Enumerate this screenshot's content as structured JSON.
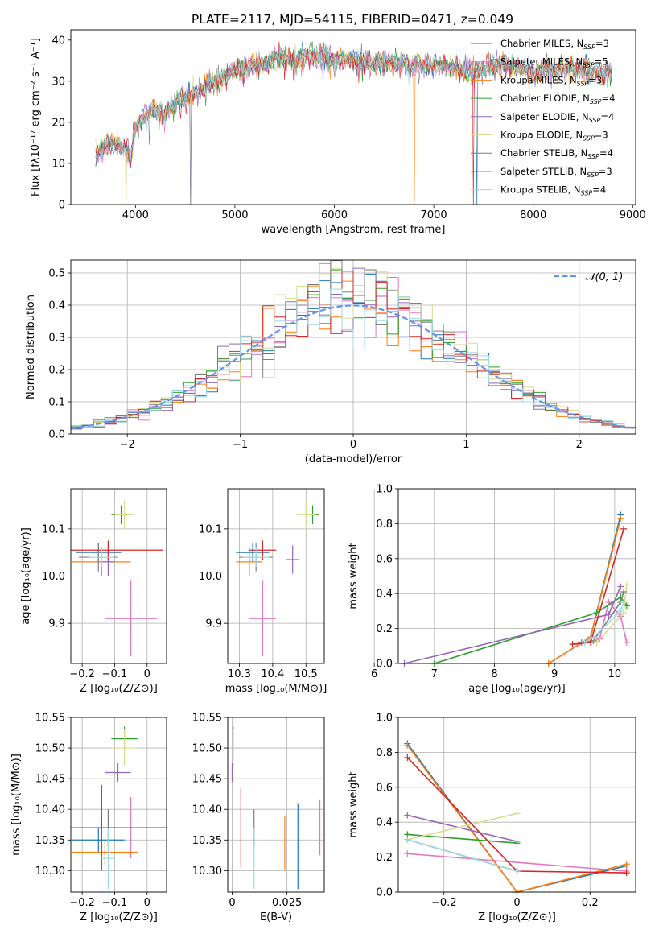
{
  "figure": {
    "title": "PLATE=2117, MJD=54115, FIBERID=0471, z=0.049"
  },
  "legend_labels": [
    {
      "pre": "Chabrier MILES, N",
      "sub": "SSP",
      "post": "=3",
      "color": "#1f77b4"
    },
    {
      "pre": "Salpeter MILES, N",
      "sub": "SSP",
      "post": "=5",
      "color": "#e377c2"
    },
    {
      "pre": "Kroupa MILES, N",
      "sub": "SSP",
      "post": "=3",
      "color": "#ff7f0e"
    },
    {
      "pre": "Chabrier ELODIE, N",
      "sub": "SSP",
      "post": "=4",
      "color": "#2ca02c"
    },
    {
      "pre": "Salpeter ELODIE, N",
      "sub": "SSP",
      "post": "=4",
      "color": "#9467bd"
    },
    {
      "pre": "Kroupa ELODIE, N",
      "sub": "SSP",
      "post": "=3",
      "color": "#dbdb8d"
    },
    {
      "pre": "Chabrier STELIB, N",
      "sub": "SSP",
      "post": "=4",
      "color": "#7f7f7f"
    },
    {
      "pre": "Salpeter STELIB, N",
      "sub": "SSP",
      "post": "=3",
      "color": "#d62728"
    },
    {
      "pre": "Kroupa STELIB, N",
      "sub": "SSP",
      "post": "=4",
      "color": "#9edae5"
    }
  ],
  "chart_data": [
    {
      "type": "line",
      "title": "PLATE=2117, MJD=54115, FIBERID=0471, z=0.049",
      "xlabel": "wavelength [Angstrom, rest frame]",
      "ylabel": "Flux [fλ10⁻¹⁷ erg cm⁻² s⁻¹ A⁻¹]",
      "xlim": [
        3350,
        9030
      ],
      "ylim": [
        0,
        42.5
      ],
      "xticks": [
        4000,
        5000,
        6000,
        7000,
        8000,
        9000
      ],
      "yticks": [
        0,
        10,
        20,
        30,
        40
      ],
      "grid": false,
      "legend": "top-right",
      "spectrum_envelope": {
        "x": [
          3600,
          3700,
          3800,
          3900,
          3950,
          4000,
          4100,
          4200,
          4300,
          4400,
          4500,
          4600,
          4700,
          4800,
          4900,
          5000,
          5100,
          5200,
          5300,
          5400,
          5500,
          5600,
          5700,
          5800,
          5900,
          6000,
          6100,
          6200,
          6300,
          6400,
          6500,
          6600,
          6700,
          6800,
          6900,
          7000,
          7100,
          7200,
          7300,
          7400,
          7500,
          7600,
          7700,
          7800,
          7900,
          8000,
          8100,
          8200,
          8300,
          8400,
          8500,
          8600,
          8700,
          8800
        ],
        "y": [
          12,
          14,
          15,
          14,
          11,
          19,
          22,
          23,
          22,
          25,
          26,
          27,
          29,
          30,
          31,
          33,
          33,
          34,
          34,
          36,
          36,
          35,
          36,
          36,
          36,
          35,
          35,
          35,
          35,
          34,
          35,
          34,
          35,
          34,
          34,
          34,
          34,
          33,
          33,
          32,
          33,
          34,
          34,
          34,
          33,
          32,
          33,
          33,
          33,
          33,
          33,
          32,
          32,
          32
        ]
      },
      "series": [
        {
          "name": "Chabrier MILES, N_SSP=3",
          "color": "#1f77b4"
        },
        {
          "name": "Salpeter MILES, N_SSP=5",
          "color": "#e377c2"
        },
        {
          "name": "Kroupa MILES, N_SSP=3",
          "color": "#ff7f0e"
        },
        {
          "name": "Chabrier ELODIE, N_SSP=4",
          "color": "#2ca02c"
        },
        {
          "name": "Salpeter ELODIE, N_SSP=4",
          "color": "#9467bd"
        },
        {
          "name": "Kroupa ELODIE, N_SSP=3",
          "color": "#dbdb8d"
        },
        {
          "name": "Chabrier STELIB, N_SSP=4",
          "color": "#7f7f7f"
        },
        {
          "name": "Salpeter STELIB, N_SSP=3",
          "color": "#d62728"
        },
        {
          "name": "Kroupa STELIB, N_SSP=4",
          "color": "#9edae5"
        }
      ]
    },
    {
      "type": "line",
      "xlabel": "(data-model)/error",
      "ylabel": "Normed distribution",
      "xlim": [
        -2.5,
        2.5
      ],
      "ylim": [
        0,
        0.54
      ],
      "xticks": [
        -2,
        -1,
        0,
        1,
        2
      ],
      "yticks": [
        0.0,
        0.1,
        0.2,
        0.3,
        0.4,
        0.5
      ],
      "grid": true,
      "legend": "top-right",
      "legend_label": "𝒩(0, 1)",
      "reference_curve": {
        "name": "N(0,1)",
        "color": "#6495ed",
        "style": "dashed"
      },
      "histogram_bins": [
        -2.5,
        2.5,
        50
      ],
      "series_colors": [
        "#1f77b4",
        "#e377c2",
        "#ff7f0e",
        "#2ca02c",
        "#9467bd",
        "#dbdb8d",
        "#7f7f7f",
        "#d62728",
        "#9edae5"
      ]
    },
    {
      "type": "scatter",
      "xlabel": "Z [log₁₀(Z/Z⊙)]",
      "ylabel": "age  [log₁₀(age/yr)]",
      "xlim": [
        -0.235,
        0.06
      ],
      "ylim": [
        9.815,
        10.185
      ],
      "xticks": [
        -0.2,
        -0.1,
        0.0
      ],
      "yticks": [
        9.9,
        10.0,
        10.1
      ],
      "grid": true,
      "points": [
        {
          "color": "#1f77b4",
          "x": -0.15,
          "y": 10.05,
          "xe": 0.07,
          "ye": 0.02
        },
        {
          "color": "#e377c2",
          "x": -0.05,
          "y": 9.91,
          "xe": 0.08,
          "ye": 0.08
        },
        {
          "color": "#ff7f0e",
          "x": -0.14,
          "y": 10.03,
          "xe": 0.09,
          "ye": 0.03
        },
        {
          "color": "#2ca02c",
          "x": -0.08,
          "y": 10.13,
          "xe": 0.03,
          "ye": 0.02
        },
        {
          "color": "#9467bd",
          "x": -0.12,
          "y": 10.03,
          "xe": 0.02,
          "ye": 0.03
        },
        {
          "color": "#dbdb8d",
          "x": -0.07,
          "y": 10.13,
          "xe": 0.03,
          "ye": 0.03
        },
        {
          "color": "#7f7f7f",
          "x": -0.15,
          "y": 10.04,
          "xe": 0.06,
          "ye": 0.03
        },
        {
          "color": "#d62728",
          "x": -0.12,
          "y": 10.055,
          "xe": 0.17,
          "ye": 0.02
        },
        {
          "color": "#9edae5",
          "x": -0.14,
          "y": 10.04,
          "xe": 0.04,
          "ye": 0.02
        }
      ]
    },
    {
      "type": "scatter",
      "xlabel": "mass [log₁₀(M/M⊙)]",
      "xlim": [
        10.265,
        10.555
      ],
      "ylim": [
        9.815,
        10.185
      ],
      "xticks": [
        10.3,
        10.4,
        10.5
      ],
      "yticks": [
        9.9,
        10.0,
        10.1
      ],
      "grid": true,
      "points": [
        {
          "color": "#1f77b4",
          "x": 10.34,
          "y": 10.05,
          "xe": 0.05,
          "ye": 0.02
        },
        {
          "color": "#e377c2",
          "x": 10.37,
          "y": 9.91,
          "xe": 0.04,
          "ye": 0.08
        },
        {
          "color": "#ff7f0e",
          "x": 10.33,
          "y": 10.03,
          "xe": 0.04,
          "ye": 0.03
        },
        {
          "color": "#2ca02c",
          "x": 10.52,
          "y": 10.13,
          "xe": 0.02,
          "ye": 0.02
        },
        {
          "color": "#9467bd",
          "x": 10.46,
          "y": 10.035,
          "xe": 0.02,
          "ye": 0.03
        },
        {
          "color": "#dbdb8d",
          "x": 10.5,
          "y": 10.13,
          "xe": 0.03,
          "ye": 0.03
        },
        {
          "color": "#7f7f7f",
          "x": 10.35,
          "y": 10.04,
          "xe": 0.05,
          "ye": 0.03
        },
        {
          "color": "#d62728",
          "x": 10.37,
          "y": 10.055,
          "xe": 0.04,
          "ye": 0.02
        },
        {
          "color": "#9edae5",
          "x": 10.35,
          "y": 10.04,
          "xe": 0.04,
          "ye": 0.02
        }
      ]
    },
    {
      "type": "line",
      "xlabel": "age  [log₁₀(age/yr)]",
      "ylabel": "mass weight",
      "xlim": [
        6.4,
        10.35
      ],
      "ylim": [
        0,
        1.0
      ],
      "xticks": [
        6,
        7,
        8,
        9,
        10
      ],
      "yticks": [
        0.0,
        0.2,
        0.4,
        0.6,
        0.8,
        1.0
      ],
      "grid": true,
      "series": [
        {
          "color": "#1f77b4",
          "x": [
            8.9,
            9.6,
            10.1
          ],
          "y": [
            0.0,
            0.15,
            0.85
          ]
        },
        {
          "color": "#e377c2",
          "x": [
            9.4,
            9.75,
            9.9,
            10.1,
            10.2
          ],
          "y": [
            0.11,
            0.14,
            0.35,
            0.27,
            0.12
          ]
        },
        {
          "color": "#ff7f0e",
          "x": [
            8.9,
            9.6,
            10.1
          ],
          "y": [
            0.0,
            0.15,
            0.83
          ]
        },
        {
          "color": "#2ca02c",
          "x": [
            7.0,
            9.7,
            10.1,
            10.2
          ],
          "y": [
            0.0,
            0.29,
            0.38,
            0.33
          ]
        },
        {
          "color": "#9467bd",
          "x": [
            6.5,
            9.9,
            10.1
          ],
          "y": [
            0.0,
            0.28,
            0.44
          ]
        },
        {
          "color": "#dbdb8d",
          "x": [
            9.7,
            10.15,
            10.2
          ],
          "y": [
            0.12,
            0.29,
            0.45
          ]
        },
        {
          "color": "#7f7f7f",
          "x": [
            9.45,
            9.65,
            10.1,
            10.15
          ],
          "y": [
            0.12,
            0.13,
            0.35,
            0.41
          ]
        },
        {
          "color": "#d62728",
          "x": [
            9.3,
            9.6,
            10.15
          ],
          "y": [
            0.11,
            0.12,
            0.77
          ]
        },
        {
          "color": "#9edae5",
          "x": [
            9.5,
            9.65,
            10.1,
            10.15
          ],
          "y": [
            0.12,
            0.15,
            0.3,
            0.35
          ]
        }
      ]
    },
    {
      "type": "scatter",
      "xlabel": "Z [log₁₀(Z/Z⊙)]",
      "ylabel": "mass [log₁₀(M/M⊙)]",
      "xlim": [
        -0.235,
        0.06
      ],
      "ylim": [
        10.265,
        10.55
      ],
      "xticks": [
        -0.2,
        -0.1,
        0.0
      ],
      "yticks": [
        10.3,
        10.35,
        10.4,
        10.45,
        10.5,
        10.55
      ],
      "grid": true,
      "points": [
        {
          "color": "#1f77b4",
          "x": -0.15,
          "y": 10.35,
          "xe": 0.08,
          "ye": 0.02
        },
        {
          "color": "#e377c2",
          "x": -0.05,
          "y": 10.37,
          "xe": 0.08,
          "ye": 0.05
        },
        {
          "color": "#ff7f0e",
          "x": -0.13,
          "y": 10.33,
          "xe": 0.1,
          "ye": 0.02
        },
        {
          "color": "#2ca02c",
          "x": -0.07,
          "y": 10.515,
          "xe": 0.04,
          "ye": 0.02
        },
        {
          "color": "#9467bd",
          "x": -0.09,
          "y": 10.46,
          "xe": 0.04,
          "ye": 0.015
        },
        {
          "color": "#dbdb8d",
          "x": -0.07,
          "y": 10.5,
          "xe": 0.04,
          "ye": 0.03
        },
        {
          "color": "#7f7f7f",
          "x": -0.12,
          "y": 10.37,
          "xe": 0.02,
          "ye": 0.03
        },
        {
          "color": "#d62728",
          "x": -0.14,
          "y": 10.37,
          "xe": 0.2,
          "ye": 0.07
        },
        {
          "color": "#9edae5",
          "x": -0.12,
          "y": 10.32,
          "xe": 0.02,
          "ye": 0.05
        }
      ]
    },
    {
      "type": "scatter",
      "xlabel": "E(B-V)",
      "xlim": [
        -0.002,
        0.042
      ],
      "ylim": [
        10.265,
        10.55
      ],
      "xticks": [
        0.0,
        0.025
      ],
      "yticks": [
        10.3,
        10.35,
        10.4,
        10.45,
        10.5,
        10.55
      ],
      "grid": true,
      "points": [
        {
          "color": "#1f77b4",
          "x": 0.03,
          "y": 10.34,
          "ye": 0.07
        },
        {
          "color": "#e377c2",
          "x": 0.04,
          "y": 10.37,
          "ye": 0.045
        },
        {
          "color": "#ff7f0e",
          "x": 0.024,
          "y": 10.345,
          "ye": 0.045
        },
        {
          "color": "#2ca02c",
          "x": 0.0005,
          "y": 10.51,
          "ye": 0.025
        },
        {
          "color": "#9467bd",
          "x": 0.0,
          "y": 10.46,
          "ye": 0.015
        },
        {
          "color": "#dbdb8d",
          "x": 0.0005,
          "y": 10.5,
          "ye": 0.03
        },
        {
          "color": "#7f7f7f",
          "x": 0.01,
          "y": 10.37,
          "ye": 0.03
        },
        {
          "color": "#d62728",
          "x": 0.004,
          "y": 10.37,
          "ye": 0.065
        },
        {
          "color": "#9edae5",
          "x": 0.01,
          "y": 10.32,
          "ye": 0.05
        }
      ]
    },
    {
      "type": "line",
      "xlabel": "Z [log₁₀(Z/Z⊙)]",
      "ylabel": "mass weight",
      "xlim": [
        -0.325,
        0.325
      ],
      "ylim": [
        0,
        1.0
      ],
      "xticks": [
        -0.2,
        0.0,
        0.2
      ],
      "yticks": [
        0.0,
        0.2,
        0.4,
        0.6,
        0.8,
        1.0
      ],
      "grid": true,
      "series": [
        {
          "color": "#1f77b4",
          "x": [
            -0.3,
            0.0,
            0.3
          ],
          "y": [
            0.85,
            0.0,
            0.15
          ]
        },
        {
          "color": "#e377c2",
          "x": [
            -0.3,
            0.3
          ],
          "y": [
            0.22,
            0.12
          ]
        },
        {
          "color": "#ff7f0e",
          "x": [
            -0.3,
            0.0,
            0.3
          ],
          "y": [
            0.84,
            0.0,
            0.16
          ]
        },
        {
          "color": "#2ca02c",
          "x": [
            -0.3,
            0.0
          ],
          "y": [
            0.33,
            0.28
          ]
        },
        {
          "color": "#9467bd",
          "x": [
            -0.3,
            0.0
          ],
          "y": [
            0.44,
            0.29
          ]
        },
        {
          "color": "#dbdb8d",
          "x": [
            -0.3,
            0.0
          ],
          "y": [
            0.3,
            0.45
          ]
        },
        {
          "color": "#7f7f7f",
          "x": [
            -0.3,
            0.0
          ],
          "y": [
            0.3,
            0.12
          ]
        },
        {
          "color": "#d62728",
          "x": [
            -0.3,
            0.0,
            0.3
          ],
          "y": [
            0.77,
            0.12,
            0.11
          ]
        },
        {
          "color": "#9edae5",
          "x": [
            -0.3,
            0.0
          ],
          "y": [
            0.3,
            0.12
          ]
        }
      ]
    }
  ]
}
